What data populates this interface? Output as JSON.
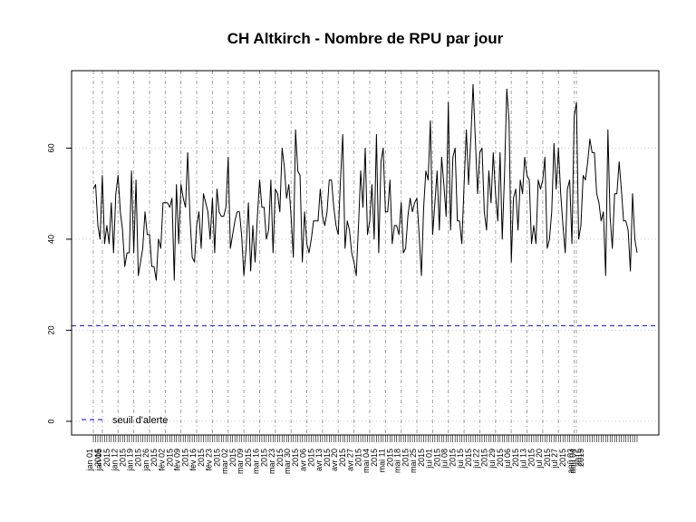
{
  "chart_data": {
    "type": "line",
    "title": "CH Altkirch  - Nombre de RPU par jour",
    "xlabel": "",
    "ylabel": "",
    "x_start": "2015-01-01",
    "x_end": "2015-08-04",
    "ylim": [
      -3,
      77
    ],
    "yticks": [
      0,
      20,
      40,
      60
    ],
    "grid": true,
    "series": [
      {
        "values": [
          51,
          52,
          43,
          40,
          54,
          39,
          43,
          39,
          48,
          37,
          50,
          54,
          46,
          42,
          34,
          37,
          37,
          55,
          37,
          53,
          32,
          35,
          38,
          46,
          41,
          41,
          34,
          34,
          31,
          40,
          38,
          48,
          48,
          48,
          47,
          49,
          31,
          52,
          39,
          52,
          49,
          47,
          59,
          45,
          36,
          35,
          43,
          46,
          38,
          50,
          48,
          46,
          40,
          49,
          37,
          51,
          46,
          45,
          45,
          47,
          58,
          38,
          41,
          44,
          46,
          46,
          41,
          32,
          38,
          48,
          33,
          43,
          35,
          45,
          53,
          47,
          47,
          40,
          42,
          53,
          37,
          51,
          50,
          46,
          60,
          56,
          49,
          52,
          45,
          36,
          64,
          55,
          54,
          35,
          46,
          39,
          37,
          40,
          44,
          44,
          44,
          51,
          45,
          43,
          46,
          53,
          53,
          47,
          43,
          41,
          53,
          63,
          38,
          44,
          42,
          37,
          35,
          32,
          43,
          55,
          47,
          60,
          41,
          44,
          52,
          40,
          63,
          37,
          57,
          60,
          46,
          46,
          53,
          39,
          43,
          43,
          41,
          48,
          37,
          38,
          45,
          49,
          46,
          48,
          49,
          41,
          32,
          47,
          55,
          53,
          66,
          41,
          48,
          55,
          42,
          58,
          52,
          45,
          70,
          42,
          58,
          60,
          44,
          44,
          39,
          52,
          64,
          52,
          62,
          74,
          62,
          50,
          59,
          60,
          46,
          42,
          55,
          48,
          59,
          50,
          44,
          59,
          40,
          54,
          73,
          66,
          35,
          49,
          51,
          42,
          53,
          50,
          58,
          54,
          53,
          39,
          43,
          39,
          53,
          51,
          53,
          58,
          38,
          40,
          46,
          61,
          51,
          60,
          50,
          43,
          37,
          51,
          53,
          39,
          67,
          70,
          40,
          43,
          54,
          53,
          57,
          62,
          59,
          59,
          50,
          48,
          44,
          46,
          32,
          64,
          45,
          38,
          50,
          50,
          57,
          51,
          44,
          44,
          42,
          33,
          50,
          40,
          37
        ]
      }
    ],
    "hlines": [
      {
        "y": 21,
        "color": "#0000ff",
        "style": "dashed"
      }
    ],
    "xtick_labels": [
      "jan 01",
      "2015",
      "jan 05",
      "2015",
      "jan 12",
      "2015",
      "jan 19",
      "2015",
      "jan 26",
      "2015",
      "fév 02",
      "2015",
      "fév 09",
      "2015",
      "fév 16",
      "2015",
      "fév 23",
      "2015",
      "mar 02",
      "2015",
      "mar 09",
      "2015",
      "mar 16",
      "2015",
      "mar 23",
      "2015",
      "mar 30",
      "2015",
      "avr 06",
      "2015",
      "avr 13",
      "2015",
      "avr 20",
      "2015",
      "avr 27",
      "2015",
      "mai 04",
      "2015",
      "mai 11",
      "2015",
      "mai 18",
      "2015",
      "mai 25",
      "2015",
      "jui 01",
      "2015",
      "jui 08",
      "2015",
      "jui 15",
      "2015",
      "jui 22",
      "2015",
      "jui 29",
      "2015",
      "jul 06",
      "2015",
      "jul 13",
      "2015",
      "jul 20",
      "2015",
      "jul 27",
      "2015",
      "aoû 03",
      "2015",
      "aoû 04",
      "2015"
    ],
    "legend": {
      "position": "bottom-left",
      "entries": [
        {
          "label": "seuil d'alerte",
          "color": "#0000ff",
          "style": "dashed"
        }
      ]
    }
  }
}
